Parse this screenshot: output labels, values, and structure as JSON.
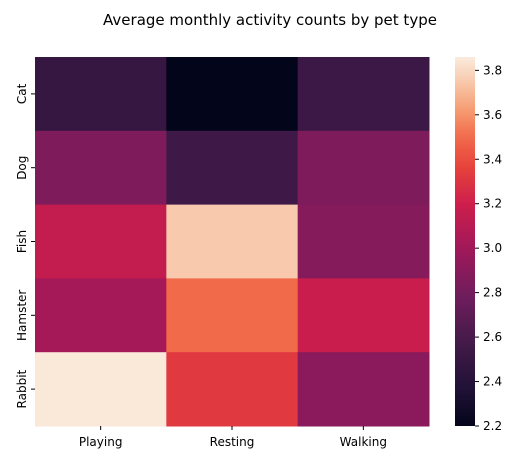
{
  "chart_data": {
    "type": "heatmap",
    "title": "Average monthly activity counts by pet type",
    "x_categories": [
      "Playing",
      "Resting",
      "Walking"
    ],
    "y_categories": [
      "Cat",
      "Dog",
      "Fish",
      "Hamster",
      "Rabbit"
    ],
    "values": [
      [
        2.5,
        2.2,
        2.53
      ],
      [
        2.85,
        2.55,
        2.85
      ],
      [
        3.15,
        3.75,
        2.88
      ],
      [
        3.02,
        3.5,
        3.18
      ],
      [
        3.85,
        3.32,
        2.9
      ]
    ],
    "colorbar": {
      "min": 2.2,
      "max": 3.86,
      "ticks": [
        "2.2",
        "2.4",
        "2.6",
        "2.8",
        "3.0",
        "3.2",
        "3.4",
        "3.6",
        "3.8"
      ],
      "tick_values": [
        2.2,
        2.4,
        2.6,
        2.8,
        3.0,
        3.2,
        3.4,
        3.6,
        3.8
      ],
      "colormap": "rocket"
    },
    "xlabel": "",
    "ylabel": "",
    "legend": "colorbar-right"
  }
}
